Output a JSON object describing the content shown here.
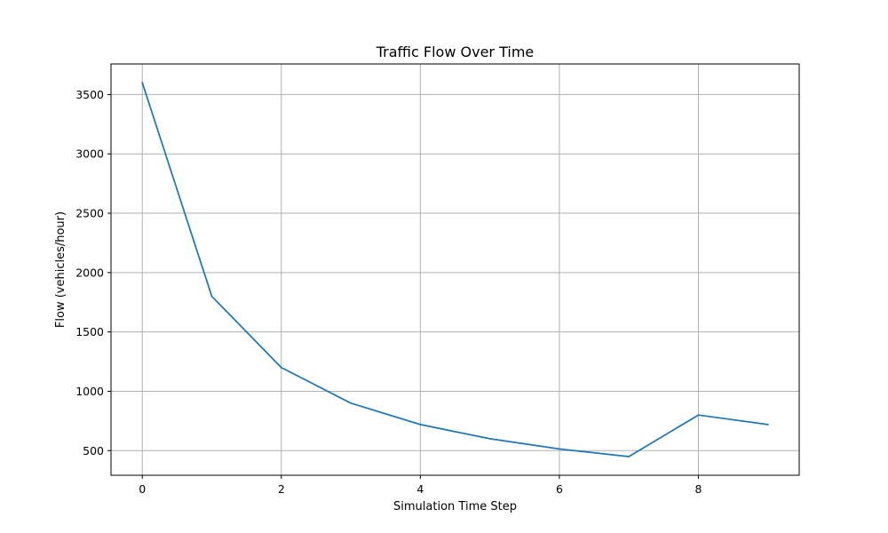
{
  "chart_data": {
    "type": "line",
    "title": "Traffic Flow Over Time",
    "xlabel": "Simulation Time Step",
    "ylabel": "Flow (vehicles/hour)",
    "x": [
      0,
      1,
      2,
      3,
      4,
      5,
      6,
      7,
      8,
      9
    ],
    "series": [
      {
        "values": [
          3600,
          1800,
          1200,
          900,
          720,
          600,
          514,
          450,
          800,
          720
        ],
        "color": "#1f77b4"
      }
    ],
    "xlim": [
      -0.45,
      9.45
    ],
    "ylim": [
      292.5,
      3757.5
    ],
    "xticks": [
      0,
      2,
      4,
      6,
      8
    ],
    "xtick_labels": [
      "0",
      "2",
      "4",
      "6",
      "8"
    ],
    "yticks": [
      500,
      1000,
      1500,
      2000,
      2500,
      3000,
      3500
    ],
    "ytick_labels": [
      "500",
      "1000",
      "1500",
      "2000",
      "2500",
      "3000",
      "3500"
    ],
    "grid": true,
    "legend": false
  }
}
